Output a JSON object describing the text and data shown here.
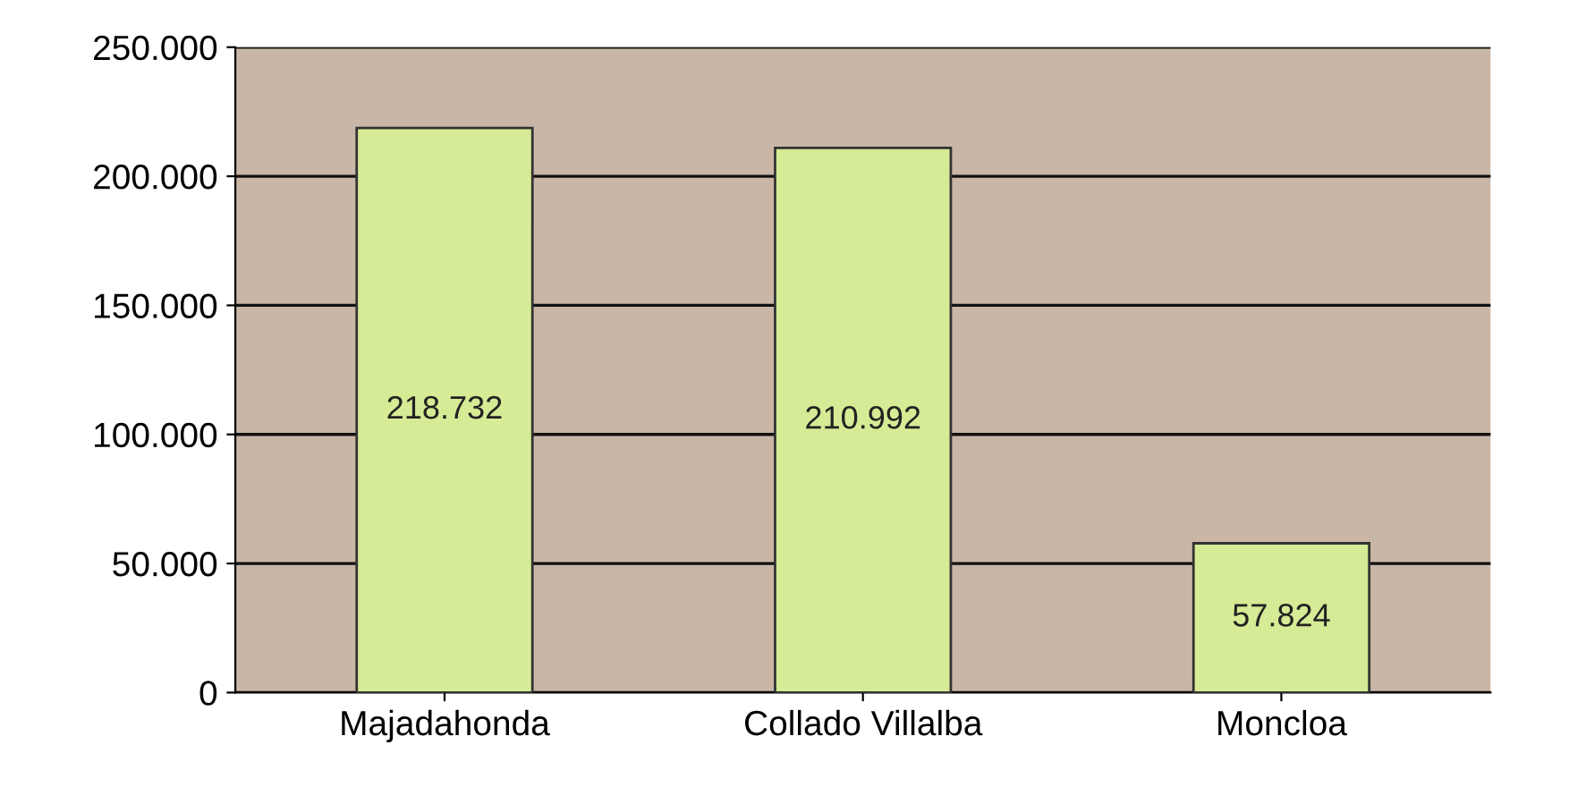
{
  "chart_data": {
    "type": "bar",
    "categories": [
      "Majadahonda",
      "Collado Villalba",
      "Moncloa"
    ],
    "values": [
      218732,
      210992,
      57824
    ],
    "color": "#d6eb95",
    "value_labels": [
      "218.732",
      "210.992",
      "57.824"
    ],
    "ylim": [
      0,
      250000
    ],
    "yticks": [
      {
        "value": 0,
        "label": "0"
      },
      {
        "value": 50000,
        "label": "50.000"
      },
      {
        "value": 100000,
        "label": "100.000"
      },
      {
        "value": 150000,
        "label": "150.000"
      },
      {
        "value": 200000,
        "label": "200.000"
      },
      {
        "value": 250000,
        "label": "250.000"
      }
    ],
    "grid": "y"
  }
}
